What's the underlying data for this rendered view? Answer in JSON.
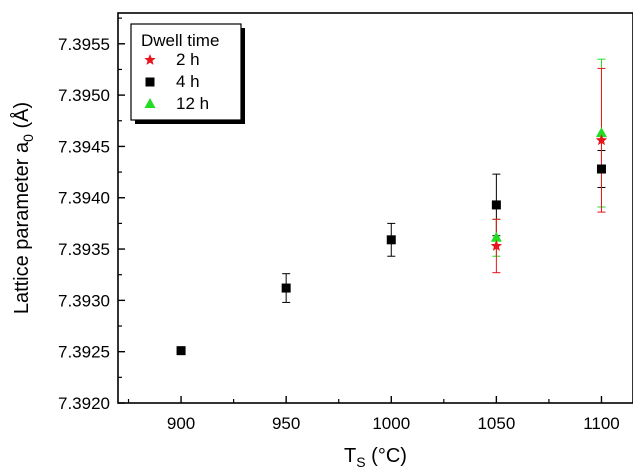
{
  "chart_data": {
    "type": "scatter",
    "xlabel_main": "T",
    "xlabel_sub": "S",
    "xlabel_unit": " (°C)",
    "ylabel_main": "Lattice parameter a",
    "ylabel_sub": "0",
    "ylabel_unit": " (Å)",
    "xlim": [
      870,
      1115
    ],
    "ylim": [
      7.392,
      7.3958
    ],
    "xticks": [
      900,
      950,
      1000,
      1050,
      1100
    ],
    "xtick_labels": [
      "900",
      "950",
      "1000",
      "1050",
      "1100"
    ],
    "yticks": [
      7.392,
      7.3925,
      7.393,
      7.3935,
      7.394,
      7.3945,
      7.395,
      7.3955
    ],
    "ytick_labels": [
      "7.3920",
      "7.3925",
      "7.3930",
      "7.3935",
      "7.3940",
      "7.3945",
      "7.3950",
      "7.3955"
    ],
    "legend": {
      "title": "Dwell time",
      "position": "top-left"
    },
    "series": [
      {
        "name": "2 h",
        "marker": "star",
        "color": "#e8141b",
        "points": [
          {
            "x": 1050,
            "y": 7.39353,
            "err": 0.00026
          },
          {
            "x": 1100,
            "y": 7.39456,
            "err": 0.0007
          }
        ]
      },
      {
        "name": "4 h",
        "marker": "square",
        "color": "#000000",
        "points": [
          {
            "x": 900,
            "y": 7.39251,
            "err": 0
          },
          {
            "x": 950,
            "y": 7.39312,
            "err": 0.00014
          },
          {
            "x": 1000,
            "y": 7.39359,
            "err": 0.00016
          },
          {
            "x": 1050,
            "y": 7.39393,
            "err": 0.0003
          },
          {
            "x": 1100,
            "y": 7.39428,
            "err": 0.00018
          }
        ]
      },
      {
        "name": "12 h",
        "marker": "triangle",
        "color": "#22dd22",
        "points": [
          {
            "x": 1050,
            "y": 7.39361,
            "err": 0.00018
          },
          {
            "x": 1100,
            "y": 7.39463,
            "err": 0.00072
          }
        ]
      }
    ]
  }
}
